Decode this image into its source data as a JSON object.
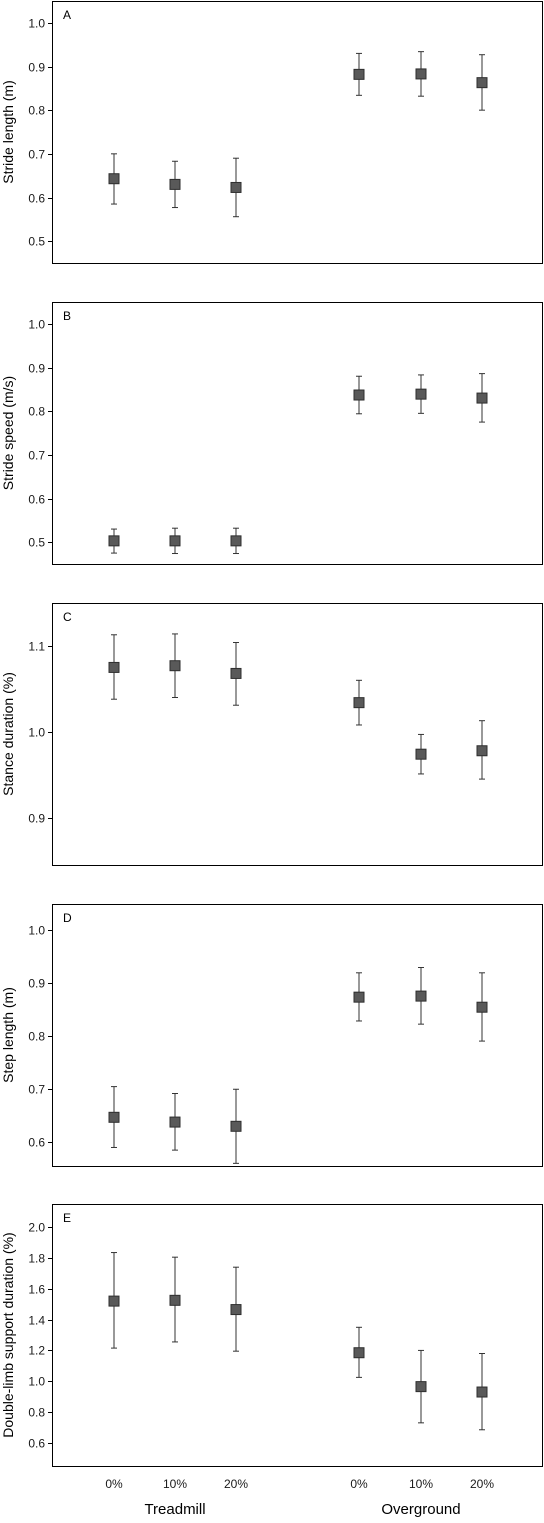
{
  "chart_data": [
    {
      "type": "scatter",
      "panel": "A",
      "ylabel": "Stride length (m)",
      "ylim": [
        0.45,
        1.05
      ],
      "yticks": [
        "0.5",
        "0.6",
        "0.7",
        "0.8",
        "0.9",
        "1.0"
      ],
      "grid": false,
      "categories": [
        "Treadmill 0%",
        "Treadmill 10%",
        "Treadmill 20%",
        "Overground 0%",
        "Overground 10%",
        "Overground 20%"
      ],
      "series": [
        {
          "values": [
            0.643,
            0.63,
            0.623,
            0.882,
            0.883,
            0.863
          ],
          "error_low": [
            0.585,
            0.577,
            0.556,
            0.834,
            0.832,
            0.8
          ],
          "error_high": [
            0.7,
            0.683,
            0.69,
            0.93,
            0.934,
            0.927
          ]
        }
      ]
    },
    {
      "type": "scatter",
      "panel": "B",
      "ylabel": "Stride speed (m/s)",
      "ylim": [
        0.45,
        1.05
      ],
      "yticks": [
        "0.5",
        "0.6",
        "0.7",
        "0.8",
        "0.9",
        "1.0"
      ],
      "grid": false,
      "categories": [
        "Treadmill 0%",
        "Treadmill 10%",
        "Treadmill 20%",
        "Overground 0%",
        "Overground 10%",
        "Overground 20%"
      ],
      "series": [
        {
          "values": [
            0.503,
            0.503,
            0.503,
            0.837,
            0.839,
            0.83
          ],
          "error_low": [
            0.475,
            0.474,
            0.474,
            0.794,
            0.795,
            0.775
          ],
          "error_high": [
            0.53,
            0.532,
            0.532,
            0.88,
            0.883,
            0.886
          ]
        }
      ]
    },
    {
      "type": "scatter",
      "panel": "C",
      "ylabel": "Stance duration (%)",
      "ylim": [
        0.845,
        1.15
      ],
      "yticks": [
        "0.9",
        "1.0",
        "1.1"
      ],
      "grid": false,
      "categories": [
        "Treadmill 0%",
        "Treadmill 10%",
        "Treadmill 20%",
        "Overground 0%",
        "Overground 10%",
        "Overground 20%"
      ],
      "series": [
        {
          "values": [
            1.075,
            1.077,
            1.068,
            1.034,
            0.974,
            0.978
          ],
          "error_low": [
            1.038,
            1.04,
            1.031,
            1.008,
            0.951,
            0.945
          ],
          "error_high": [
            1.113,
            1.114,
            1.104,
            1.06,
            0.997,
            1.013
          ]
        }
      ]
    },
    {
      "type": "scatter",
      "panel": "D",
      "ylabel": "Step length (m)",
      "ylim": [
        0.555,
        1.05
      ],
      "yticks": [
        "0.6",
        "0.7",
        "0.8",
        "0.9",
        "1.0"
      ],
      "grid": false,
      "categories": [
        "Treadmill 0%",
        "Treadmill 10%",
        "Treadmill 20%",
        "Overground 0%",
        "Overground 10%",
        "Overground 20%"
      ],
      "series": [
        {
          "values": [
            0.647,
            0.638,
            0.63,
            0.874,
            0.876,
            0.855
          ],
          "error_low": [
            0.59,
            0.585,
            0.56,
            0.829,
            0.823,
            0.791
          ],
          "error_high": [
            0.705,
            0.692,
            0.7,
            0.92,
            0.93,
            0.92
          ]
        }
      ]
    },
    {
      "type": "scatter",
      "panel": "E",
      "ylabel": "Double-limb support duration (%)",
      "ylim": [
        0.45,
        2.15
      ],
      "yticks": [
        "0.6",
        "0.8",
        "1.0",
        "1.2",
        "1.4",
        "1.6",
        "1.8",
        "2.0"
      ],
      "grid": false,
      "categories": [
        "Treadmill 0%",
        "Treadmill 10%",
        "Treadmill 20%",
        "Overground 0%",
        "Overground 10%",
        "Overground 20%"
      ],
      "series": [
        {
          "values": [
            1.52,
            1.525,
            1.465,
            1.185,
            0.965,
            0.93
          ],
          "error_low": [
            1.215,
            1.255,
            1.195,
            1.025,
            0.73,
            0.685
          ],
          "error_high": [
            1.835,
            1.805,
            1.74,
            1.35,
            1.2,
            1.18
          ]
        }
      ]
    }
  ],
  "x_axis": {
    "tick_labels": [
      "0%",
      "10%",
      "20%",
      "0%",
      "10%",
      "20%"
    ],
    "groups": [
      "Treadmill",
      "Overground"
    ]
  },
  "colors": {
    "marker_fill": "#595959",
    "marker_stroke": "#2e2e2e",
    "error_bar": "#333333",
    "frame": "#000000"
  }
}
